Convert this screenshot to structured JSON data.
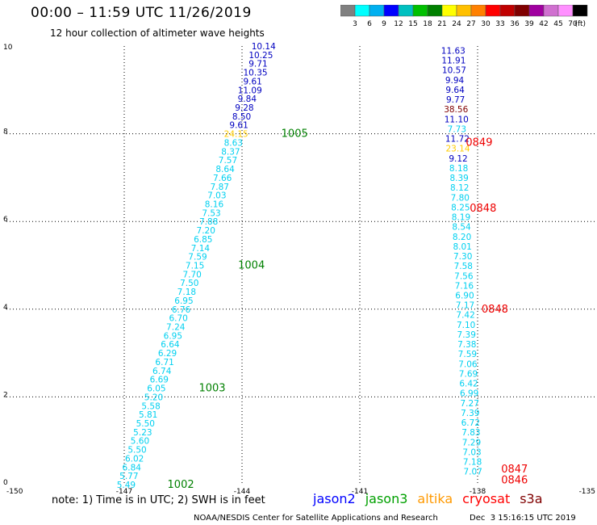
{
  "header": {
    "title": "00:00 – 11:59 UTC 11/26/2019",
    "subtitle": "12 hour collection of altimeter wave heights"
  },
  "colorbar": {
    "colors": [
      "#808080",
      "#00ffff",
      "#00b0f0",
      "#0000ff",
      "#00c0c0",
      "#00c000",
      "#008000",
      "#ffff00",
      "#ffc000",
      "#ff8000",
      "#ff0000",
      "#c00000",
      "#800000",
      "#a000a0",
      "#d070d0",
      "#ff90ff",
      "#000000"
    ],
    "labels": [
      "3",
      "6",
      "9",
      "12",
      "15",
      "18",
      "21",
      "24",
      "27",
      "30",
      "33",
      "36",
      "39",
      "42",
      "45",
      "70"
    ],
    "unit": "(ft)"
  },
  "chart_data": {
    "type": "scatter",
    "title": "00:00 – 11:59 UTC 11/26/2019",
    "subtitle": "12 hour collection of altimeter wave heights",
    "xlim": [
      -150,
      -135
    ],
    "ylim": [
      0,
      10
    ],
    "x_ticks": [
      "-150",
      "-147",
      "-144",
      "-141",
      "-138",
      "-135"
    ],
    "y_ticks": [
      "0",
      "2",
      "4",
      "6",
      "8",
      "10"
    ],
    "grid": true,
    "tracks": [
      {
        "name": "track-west",
        "x_start": -146.95,
        "x_end": -143.45,
        "y_start": 0.0,
        "y_end": 10.0,
        "values": [
          "5.49",
          "5.77",
          "6.84",
          "6.02",
          "5.50",
          "5.60",
          "5.23",
          "5.50",
          "5.81",
          "5.58",
          "5.20",
          "6.05",
          "6.69",
          "6.74",
          "6.71",
          "6.29",
          "6.64",
          "6.95",
          "7.24",
          "6.70",
          "6.76",
          "6.95",
          "7.18",
          "7.50",
          "7.70",
          "7.15",
          "7.59",
          "7.14",
          "6.85",
          "7.20",
          "7.88",
          "7.53",
          "8.16",
          "7.03",
          "7.87",
          "7.66",
          "8.64",
          "7.57",
          "8.37",
          "8.63",
          "24.15",
          "9.61",
          "8.50",
          "9.28",
          "9.84",
          "11.09",
          "9.61",
          "10.35",
          "9.71",
          "10.25",
          "10.14"
        ],
        "colors": [
          "cyan",
          "cyan",
          "cyan",
          "cyan",
          "cyan",
          "cyan",
          "cyan",
          "cyan",
          "cyan",
          "cyan",
          "cyan",
          "cyan",
          "cyan",
          "cyan",
          "cyan",
          "cyan",
          "cyan",
          "cyan",
          "cyan",
          "cyan",
          "cyan",
          "cyan",
          "cyan",
          "cyan",
          "cyan",
          "cyan",
          "cyan",
          "cyan",
          "cyan",
          "cyan",
          "cyan",
          "cyan",
          "cyan",
          "cyan",
          "cyan",
          "cyan",
          "cyan",
          "cyan",
          "cyan",
          "cyan",
          "yellow",
          "blue",
          "blue",
          "blue",
          "blue",
          "blue",
          "blue",
          "blue",
          "blue",
          "blue",
          "blue"
        ]
      },
      {
        "name": "track-east",
        "x_start": -138.12,
        "x_end": -138.62,
        "y_start": 0.3,
        "y_end": 9.9,
        "values": [
          "7.07",
          "7.18",
          "7.03",
          "7.29",
          "7.83",
          "6.72",
          "7.39",
          "7.27",
          "6.99",
          "6.42",
          "7.69",
          "7.06",
          "7.59",
          "7.38",
          "7.39",
          "7.10",
          "7.42",
          "7.17",
          "6.90",
          "7.16",
          "7.56",
          "7.58",
          "7.30",
          "8.01",
          "8.20",
          "8.54",
          "8.19",
          "8.25",
          "7.80",
          "8.12",
          "8.39",
          "8.18",
          "9.12",
          "23.14",
          "11.72",
          "7.73",
          "11.10",
          "38.56",
          "9.77",
          "9.64",
          "9.94",
          "10.57",
          "11.91",
          "11.63"
        ],
        "colors": [
          "cyan",
          "cyan",
          "cyan",
          "cyan",
          "cyan",
          "cyan",
          "cyan",
          "cyan",
          "cyan",
          "cyan",
          "cyan",
          "cyan",
          "cyan",
          "cyan",
          "cyan",
          "cyan",
          "cyan",
          "cyan",
          "cyan",
          "cyan",
          "cyan",
          "cyan",
          "cyan",
          "cyan",
          "cyan",
          "cyan",
          "cyan",
          "cyan",
          "cyan",
          "cyan",
          "cyan",
          "cyan",
          "blue",
          "yellow",
          "blue",
          "cyan",
          "blue",
          "maroon",
          "blue",
          "blue",
          "blue",
          "blue",
          "blue",
          "blue"
        ]
      }
    ],
    "time_labels": [
      {
        "text": "1002",
        "x": -145.9,
        "y": 0.0,
        "color": "green"
      },
      {
        "text": "1003",
        "x": -145.1,
        "y": 2.2,
        "color": "green"
      },
      {
        "text": "1004",
        "x": -144.1,
        "y": 5.0,
        "color": "green"
      },
      {
        "text": "1005",
        "x": -143.0,
        "y": 8.0,
        "color": "green"
      },
      {
        "text": "0846",
        "x": -137.4,
        "y": 0.1,
        "color": "red"
      },
      {
        "text": "0847",
        "x": -137.4,
        "y": 0.35,
        "color": "red"
      },
      {
        "text": "0848",
        "x": -137.9,
        "y": 4.0,
        "color": "red"
      },
      {
        "text": "0848",
        "x": -138.2,
        "y": 6.3,
        "color": "red"
      },
      {
        "text": "0849",
        "x": -138.3,
        "y": 7.8,
        "color": "red"
      }
    ]
  },
  "palette": {
    "cyan": "#00d0f0",
    "blue": "#0000c0",
    "yellow": "#ffcc00",
    "maroon": "#800000",
    "green": "#008000",
    "red": "#ee0000"
  },
  "legend": {
    "note": "note: 1) Time is in UTC; 2) SWH is in feet",
    "satellites": [
      {
        "name": "jason2",
        "color": "#0000ff"
      },
      {
        "name": "jason3",
        "color": "#00a000"
      },
      {
        "name": "altika",
        "color": "#ff9900"
      },
      {
        "name": "cryosat",
        "color": "#ff0000"
      },
      {
        "name": "s3a",
        "color": "#800000"
      }
    ]
  },
  "footer": {
    "org": "NOAA/NESDIS Center for Satellite Applications and Research",
    "date": "Dec  3 15:16:15 UTC 2019"
  }
}
